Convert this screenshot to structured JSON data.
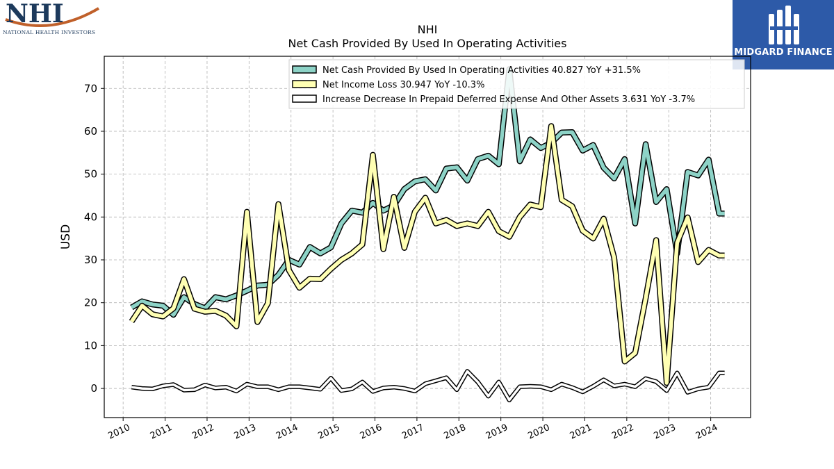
{
  "logos": {
    "left_brand": "NHI",
    "left_caption": "NATIONAL HEALTH INVESTORS",
    "right_brand": "MIDGARD FINANCE"
  },
  "chart_data": {
    "type": "line",
    "title": "NHI",
    "subtitle": "Net Cash Provided By Used In Operating Activities",
    "xlabel": "",
    "ylabel": "USD",
    "xlim": [
      2009.55,
      2024.95
    ],
    "ylim": [
      -6.8,
      77.5
    ],
    "yticks": [
      0,
      10,
      20,
      30,
      40,
      50,
      60,
      70
    ],
    "xticks": [
      "2010",
      "2011",
      "2012",
      "2013",
      "2014",
      "2015",
      "2016",
      "2017",
      "2018",
      "2019",
      "2020",
      "2021",
      "2022",
      "2023",
      "2024"
    ],
    "grid": true,
    "legend_position": "top-right",
    "colors": {
      "series1": "#8dd3c7",
      "series2": "#ffffb3",
      "series3": "#ffffff",
      "outline": "#000000",
      "grid": "#b0b0b0"
    },
    "x": [
      2010.2,
      2010.45,
      2010.7,
      2010.95,
      2011.2,
      2011.45,
      2011.7,
      2011.95,
      2012.2,
      2012.45,
      2012.7,
      2012.95,
      2013.2,
      2013.45,
      2013.7,
      2013.95,
      2014.2,
      2014.45,
      2014.7,
      2014.95,
      2015.2,
      2015.45,
      2015.7,
      2015.95,
      2016.2,
      2016.45,
      2016.7,
      2016.95,
      2017.2,
      2017.45,
      2017.7,
      2017.95,
      2018.2,
      2018.45,
      2018.7,
      2018.95,
      2019.2,
      2019.45,
      2019.7,
      2019.95,
      2020.2,
      2020.45,
      2020.7,
      2020.95,
      2021.2,
      2021.45,
      2021.7,
      2021.95,
      2022.2,
      2022.45,
      2022.7,
      2022.95,
      2023.2,
      2023.45,
      2023.7,
      2023.95,
      2024.2,
      2024.33
    ],
    "series": [
      {
        "name": "Net Cash Provided By Used In Operating Activities",
        "legend": "Net Cash Provided By Used In Operating Activities  40.827 YoY +31.5%",
        "values": [
          18.9,
          20.3,
          19.6,
          19.3,
          17.2,
          21.3,
          19.7,
          18.7,
          21.3,
          20.8,
          21.7,
          22.8,
          24.0,
          24.2,
          26.5,
          30.0,
          28.9,
          33.0,
          31.5,
          32.9,
          38.5,
          41.5,
          41.0,
          43.3,
          41.5,
          42.7,
          46.5,
          48.3,
          48.8,
          46.2,
          51.3,
          51.6,
          48.5,
          53.5,
          54.3,
          52.3,
          74.5,
          53.0,
          58.1,
          56.1,
          57.3,
          59.7,
          59.8,
          55.5,
          56.8,
          51.5,
          49.0,
          53.5,
          38.5,
          57.0,
          43.5,
          46.5,
          31.5,
          50.5,
          49.7,
          53.4,
          40.8,
          40.8
        ]
      },
      {
        "name": "Net Income Loss",
        "legend": "Net Income Loss  30.947 YoY -10.3%",
        "values": [
          15.6,
          19.3,
          17.3,
          16.8,
          18.7,
          25.5,
          18.6,
          17.9,
          18.1,
          17.0,
          14.5,
          41.2,
          15.5,
          19.9,
          43.0,
          27.6,
          23.5,
          25.6,
          25.5,
          27.9,
          30.0,
          31.5,
          33.6,
          54.5,
          32.5,
          44.7,
          32.8,
          41.2,
          44.5,
          38.5,
          39.3,
          37.9,
          38.5,
          37.9,
          41.2,
          36.7,
          35.4,
          40.0,
          42.9,
          42.3,
          61.2,
          44.0,
          42.5,
          36.8,
          35.0,
          39.6,
          30.5,
          6.3,
          8.3,
          21.0,
          34.6,
          1.3,
          34.0,
          39.9,
          29.5,
          32.3,
          31.0,
          31.0
        ]
      },
      {
        "name": "Increase Decrease In Prepaid Deferred Expense And Other Assets",
        "legend": "Increase Decrease In Prepaid Deferred Expense And Other Assets  3.631 YoY -3.7%",
        "values": [
          0.3,
          0.0,
          -0.1,
          0.6,
          0.9,
          -0.4,
          -0.3,
          0.8,
          0.1,
          0.3,
          -0.6,
          1.0,
          0.4,
          0.4,
          -0.3,
          0.4,
          0.4,
          0.1,
          -0.2,
          2.4,
          -0.5,
          -0.1,
          1.5,
          -0.7,
          0.1,
          0.3,
          0.0,
          -0.6,
          1.1,
          1.8,
          2.5,
          -0.3,
          4.0,
          1.5,
          -1.8,
          1.5,
          -2.7,
          0.4,
          0.5,
          0.4,
          -0.3,
          1.0,
          0.2,
          -0.8,
          0.5,
          2.0,
          0.6,
          1.0,
          0.4,
          2.3,
          1.6,
          -0.5,
          3.6,
          -0.9,
          -0.1,
          0.3,
          3.6,
          3.6
        ]
      }
    ]
  }
}
